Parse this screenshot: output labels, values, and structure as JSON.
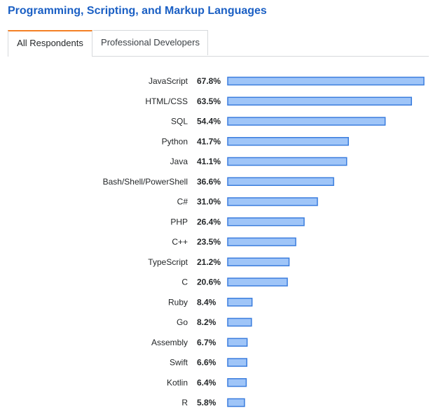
{
  "title": "Programming, Scripting, and Markup Languages",
  "tabs": [
    {
      "label": "All Respondents",
      "active": true
    },
    {
      "label": "Professional Developers",
      "active": false
    }
  ],
  "colors": {
    "title": "#1a5fc4",
    "tab_accent": "#f48024",
    "bar_fill": "#9fc5f8",
    "bar_stroke": "#3b7ddd"
  },
  "chart_data": {
    "type": "bar",
    "orientation": "horizontal",
    "categories": [
      "JavaScript",
      "HTML/CSS",
      "SQL",
      "Python",
      "Java",
      "Bash/Shell/PowerShell",
      "C#",
      "PHP",
      "C++",
      "TypeScript",
      "C",
      "Ruby",
      "Go",
      "Assembly",
      "Swift",
      "Kotlin",
      "R"
    ],
    "values": [
      67.8,
      63.5,
      54.4,
      41.7,
      41.1,
      36.6,
      31.0,
      26.4,
      23.5,
      21.2,
      20.6,
      8.4,
      8.2,
      6.7,
      6.6,
      6.4,
      5.8
    ],
    "value_labels": [
      "67.8%",
      "63.5%",
      "54.4%",
      "41.7%",
      "41.1%",
      "36.6%",
      "31.0%",
      "26.4%",
      "23.5%",
      "21.2%",
      "20.6%",
      "8.4%",
      "8.2%",
      "6.7%",
      "6.6%",
      "6.4%",
      "5.8%"
    ],
    "unit": "%",
    "xlim": [
      0,
      67.8
    ],
    "grid": false,
    "legend": "none"
  }
}
